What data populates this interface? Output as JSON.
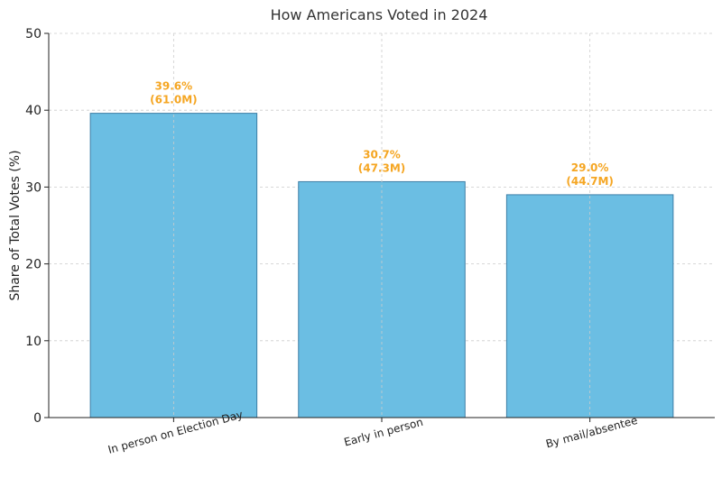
{
  "chart_data": {
    "type": "bar",
    "title": "How Americans Voted in 2024",
    "xlabel": "",
    "ylabel": "Share of Total Votes (%)",
    "ylim": [
      0,
      50
    ],
    "yticks": [
      "0",
      "10",
      "20",
      "30",
      "40",
      "50"
    ],
    "categories": [
      "In person on Election Day",
      "Early in person",
      "By mail/absentee"
    ],
    "values": [
      39.6,
      30.7,
      29.0
    ],
    "value_labels": [
      "39.6%",
      "30.7%",
      "29.0%"
    ],
    "count_labels": [
      "(61.0M)",
      "(47.3M)",
      "(44.7M)"
    ],
    "grid": true,
    "bar_color": "#6bbee3",
    "bar_edge_color": "#3d7fa6",
    "label_color": "#f5a623"
  }
}
